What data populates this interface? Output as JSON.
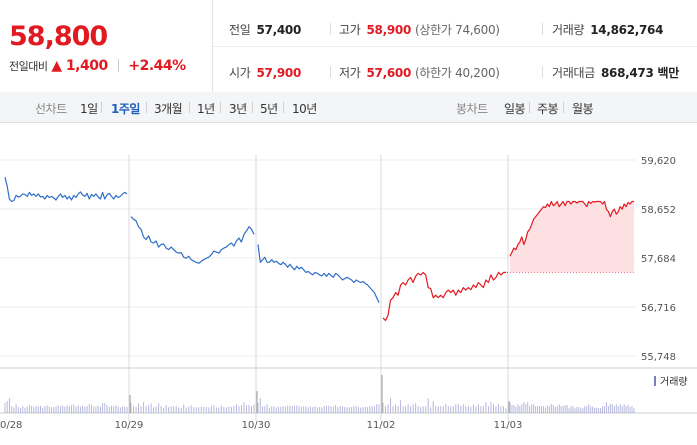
{
  "quote": {
    "price": "58,800",
    "change_label": "전일대비",
    "change_arrow": "▲",
    "change_value": "1,400",
    "change_pct": "+2.44%",
    "prev_close": {
      "label": "전일",
      "value": "57,400"
    },
    "open": {
      "label": "시가",
      "value": "57,900"
    },
    "high": {
      "label": "고가",
      "value": "58,900",
      "sub": "(상한가 74,600)"
    },
    "low": {
      "label": "저가",
      "value": "57,600",
      "sub": "(하한가 40,200)"
    },
    "volume": {
      "label": "거래량",
      "value": "14,862,764"
    },
    "amount": {
      "label": "거래대금",
      "value": "868,473",
      "unit": "백만"
    }
  },
  "tabs": {
    "line_label": "선차트",
    "line_periods": [
      "1일",
      "1주일",
      "3개월",
      "1년",
      "3년",
      "5년",
      "10년"
    ],
    "active_period": "1주일",
    "candle_label": "봉차트",
    "candle_periods": [
      "일봉",
      "주봉",
      "월봉"
    ]
  },
  "colors": {
    "up": "#e11a22",
    "down": "#2f6fc8",
    "active_tab": "#1f5fbf",
    "fill_up": "#fde0e2",
    "volume": "#7b7fc2"
  },
  "chart_data": {
    "type": "line",
    "y_ticks": [
      "59,620",
      "58,652",
      "57,684",
      "56,716",
      "55,748"
    ],
    "ylim": [
      55748,
      59620
    ],
    "x_labels": [
      "10/28",
      "10/29",
      "10/30",
      "11/02",
      "11/03"
    ],
    "reference_price": 57400,
    "volume_legend": "거래량",
    "series": [
      {
        "day": "10/28",
        "direction": "down",
        "values": [
          59280,
          59100,
          58850,
          58800,
          58820,
          58920,
          58890,
          58900,
          58950,
          58940,
          58900,
          58980,
          58920,
          58950,
          58900,
          58950,
          58890,
          58900,
          58850,
          58920,
          58880,
          58900,
          58870,
          58830,
          58900,
          58950,
          58880,
          58920,
          58850,
          58900,
          58830,
          58920,
          58880,
          58950,
          58990,
          58930,
          58900,
          58960,
          58850,
          58940,
          58900,
          58950,
          58890,
          58850,
          58980,
          58850,
          58930,
          58960,
          58900,
          58850,
          58920,
          58880,
          58900,
          58950,
          58980,
          58950
        ]
      },
      {
        "day": "10/29",
        "direction": "down",
        "values": [
          58500,
          58450,
          58420,
          58300,
          58250,
          58100,
          58050,
          58120,
          58000,
          57980,
          58020,
          57900,
          57950,
          57960,
          57880,
          57850,
          57900,
          57850,
          57800,
          57780,
          57790,
          57700,
          57680,
          57720,
          57650,
          57620,
          57600,
          57580,
          57620,
          57650,
          57680,
          57700,
          57750,
          57820,
          57800,
          57780,
          57850,
          57880,
          57900,
          57950,
          57980,
          57920,
          58020,
          58080,
          58000,
          58150,
          58220,
          58300,
          58250,
          58150
        ]
      },
      {
        "day": "10/30",
        "direction": "down",
        "values": [
          57950,
          57600,
          57650,
          57700,
          57600,
          57600,
          57650,
          57600,
          57620,
          57580,
          57550,
          57600,
          57560,
          57500,
          57560,
          57500,
          57450,
          57520,
          57470,
          57500,
          57450,
          57400,
          57420,
          57380,
          57350,
          57400,
          57380,
          57350,
          57330,
          57380,
          57320,
          57380,
          57340,
          57300,
          57380,
          57350,
          57300,
          57250,
          57280,
          57300,
          57280,
          57250,
          57200,
          57250,
          57220,
          57200,
          57220,
          57180,
          57150,
          57100,
          57050,
          57000,
          56900,
          56800
        ]
      },
      {
        "day": "11/02",
        "direction": "up",
        "values": [
          56500,
          56450,
          56550,
          56850,
          56900,
          57000,
          56950,
          57150,
          57200,
          57150,
          57250,
          57300,
          57200,
          57320,
          57380,
          57350,
          57400,
          57350,
          57100,
          57080,
          56900,
          56950,
          56900,
          56950,
          56900,
          57000,
          57050,
          57000,
          57050,
          56950,
          57050,
          57000,
          57100,
          57050,
          57100,
          57060,
          57150,
          57100,
          57200,
          57150,
          57100,
          57250,
          57200,
          57350,
          57250,
          57300,
          57400,
          57350,
          57400,
          57400
        ]
      },
      {
        "day": "11/03",
        "direction": "up",
        "values": [
          57720,
          57800,
          57880,
          57850,
          57950,
          58000,
          58100,
          57950,
          58050,
          58200,
          58250,
          58350,
          58450,
          58500,
          58550,
          58600,
          58650,
          58700,
          58680,
          58750,
          58700,
          58800,
          58720,
          58750,
          58800,
          58700,
          58750,
          58800,
          58720,
          58800,
          58800,
          58750,
          58800,
          58800,
          58770,
          58800,
          58800,
          58800,
          58750,
          58700,
          58800,
          58760,
          58800,
          58790,
          58800,
          58800,
          58800,
          58750,
          58800,
          58650,
          58600,
          58500,
          58600,
          58650,
          58550,
          58600,
          58700,
          58650,
          58750,
          58700,
          58780,
          58750,
          58800,
          58800
        ]
      }
    ]
  }
}
